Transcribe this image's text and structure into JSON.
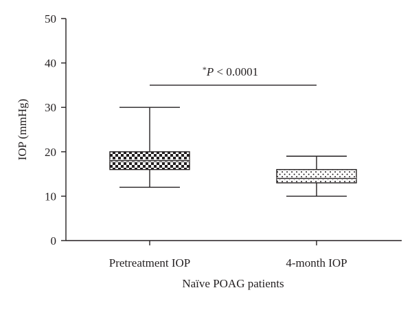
{
  "chart_data": {
    "type": "box",
    "title": "",
    "xlabel": "Naïve POAG patients",
    "ylabel": "IOP (mmHg)",
    "ylim": [
      0,
      50
    ],
    "yticks": [
      "0",
      "10",
      "20",
      "30",
      "40",
      "50"
    ],
    "categories": [
      "Pretreatment IOP",
      "4-month IOP"
    ],
    "boxes": [
      {
        "label": "Pretreatment IOP",
        "min": 12,
        "q1": 16,
        "median": 18,
        "q3": 20,
        "max": 30,
        "pattern": "checkerboard"
      },
      {
        "label": "4-month IOP",
        "min": 10,
        "q1": 13,
        "median": 14,
        "q3": 16,
        "max": 19,
        "pattern": "dots"
      }
    ],
    "annotation": {
      "star": "*",
      "p_italic": "P",
      "rest": " < 0.0001",
      "y": 35
    },
    "grid": false,
    "legend": "none",
    "colors": {
      "ink": "#231f20",
      "background": "#ffffff"
    }
  }
}
